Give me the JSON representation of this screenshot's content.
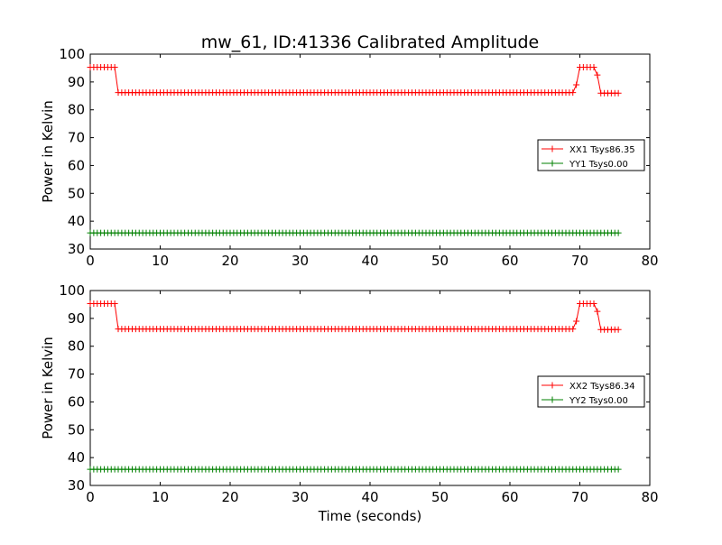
{
  "figure": {
    "title": "mw_61, ID:41336 Calibrated Amplitude",
    "xlabel": "Time (seconds)"
  },
  "chart_data": [
    {
      "type": "line",
      "ylabel": "Power in Kelvin",
      "xlim": [
        0,
        80
      ],
      "ylim": [
        30,
        100
      ],
      "x_ticks": [
        "0",
        "10",
        "20",
        "30",
        "40",
        "50",
        "60",
        "70",
        "80"
      ],
      "y_ticks": [
        "30",
        "40",
        "50",
        "60",
        "70",
        "80",
        "90",
        "100"
      ],
      "legend_position": "center-right",
      "series": [
        {
          "name": "XX1 Tsys86.35",
          "color": "#ff0000",
          "marker": "plus",
          "x": [
            0,
            0.5,
            1,
            1.5,
            2,
            2.5,
            3,
            3.5,
            4,
            12,
            12.5,
            36,
            47,
            48,
            50,
            69,
            69.5,
            70,
            71,
            72,
            72.5,
            73,
            75.5
          ],
          "y_start": 0,
          "y_end": 75.5,
          "step": 0.5,
          "segments": [
            {
              "from": 0,
              "to": 3.5,
              "value": 95.3
            },
            {
              "from": 4,
              "to": 69,
              "value": 86.2
            },
            {
              "from": 69.5,
              "to": 69.5,
              "value": 89.0
            },
            {
              "from": 70,
              "to": 72,
              "value": 95.3
            },
            {
              "from": 72.5,
              "to": 72.5,
              "value": 92.5
            },
            {
              "from": 73,
              "to": 75.5,
              "value": 86.0
            }
          ]
        },
        {
          "name": "YY1 Tsys0.00",
          "color": "#008000",
          "marker": "plus",
          "y_start": 0,
          "y_end": 75.5,
          "step": 0.5,
          "segments": [
            {
              "from": 0,
              "to": 75.5,
              "value": 35.8
            }
          ]
        }
      ]
    },
    {
      "type": "line",
      "ylabel": "Power in Kelvin",
      "xlim": [
        0,
        80
      ],
      "ylim": [
        30,
        100
      ],
      "x_ticks": [
        "0",
        "10",
        "20",
        "30",
        "40",
        "50",
        "60",
        "70",
        "80"
      ],
      "y_ticks": [
        "30",
        "40",
        "50",
        "60",
        "70",
        "80",
        "90",
        "100"
      ],
      "legend_position": "center-right",
      "series": [
        {
          "name": "XX2 Tsys86.34",
          "color": "#ff0000",
          "marker": "plus",
          "y_start": 0,
          "y_end": 75.5,
          "step": 0.5,
          "segments": [
            {
              "from": 0,
              "to": 3.5,
              "value": 95.3
            },
            {
              "from": 4,
              "to": 69,
              "value": 86.2
            },
            {
              "from": 69.5,
              "to": 69.5,
              "value": 89.0
            },
            {
              "from": 70,
              "to": 72,
              "value": 95.3
            },
            {
              "from": 72.5,
              "to": 72.5,
              "value": 92.5
            },
            {
              "from": 73,
              "to": 75.5,
              "value": 86.0
            }
          ]
        },
        {
          "name": "YY2 Tsys0.00",
          "color": "#008000",
          "marker": "plus",
          "y_start": 0,
          "y_end": 75.5,
          "step": 0.5,
          "segments": [
            {
              "from": 0,
              "to": 75.5,
              "value": 35.8
            }
          ]
        }
      ]
    }
  ]
}
